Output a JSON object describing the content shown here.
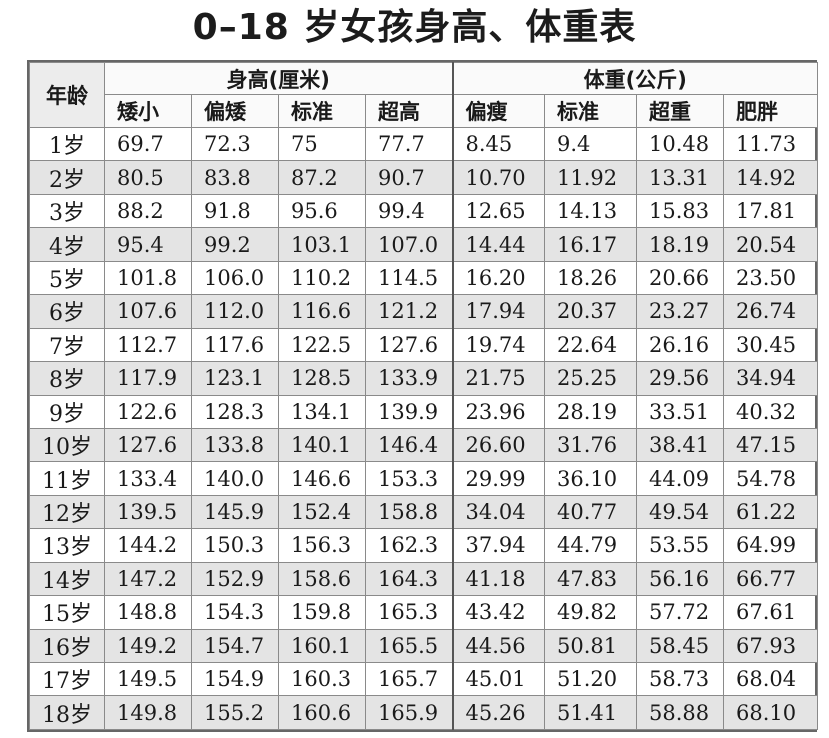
{
  "title": "0–18 岁女孩身高、体重表",
  "headers": {
    "age": "年龄",
    "height_group": "身高(厘米)",
    "weight_group": "体重(公斤)",
    "height_cols": [
      "矮小",
      "偏矮",
      "标准",
      "超高"
    ],
    "weight_cols": [
      "偏瘦",
      "标准",
      "超重",
      "肥胖"
    ]
  },
  "rows": [
    {
      "age": "1岁",
      "h": [
        "69.7",
        "72.3",
        "75",
        "77.7"
      ],
      "w": [
        "8.45",
        "9.4",
        "10.48",
        "11.73"
      ]
    },
    {
      "age": "2岁",
      "h": [
        "80.5",
        "83.8",
        "87.2",
        "90.7"
      ],
      "w": [
        "10.70",
        "11.92",
        "13.31",
        "14.92"
      ]
    },
    {
      "age": "3岁",
      "h": [
        "88.2",
        "91.8",
        "95.6",
        "99.4"
      ],
      "w": [
        "12.65",
        "14.13",
        "15.83",
        "17.81"
      ]
    },
    {
      "age": "4岁",
      "h": [
        "95.4",
        "99.2",
        "103.1",
        "107.0"
      ],
      "w": [
        "14.44",
        "16.17",
        "18.19",
        "20.54"
      ]
    },
    {
      "age": "5岁",
      "h": [
        "101.8",
        "106.0",
        "110.2",
        "114.5"
      ],
      "w": [
        "16.20",
        "18.26",
        "20.66",
        "23.50"
      ]
    },
    {
      "age": "6岁",
      "h": [
        "107.6",
        "112.0",
        "116.6",
        "121.2"
      ],
      "w": [
        "17.94",
        "20.37",
        "23.27",
        "26.74"
      ]
    },
    {
      "age": "7岁",
      "h": [
        "112.7",
        "117.6",
        "122.5",
        "127.6"
      ],
      "w": [
        "19.74",
        "22.64",
        "26.16",
        "30.45"
      ]
    },
    {
      "age": "8岁",
      "h": [
        "117.9",
        "123.1",
        "128.5",
        "133.9"
      ],
      "w": [
        "21.75",
        "25.25",
        "29.56",
        "34.94"
      ]
    },
    {
      "age": "9岁",
      "h": [
        "122.6",
        "128.3",
        "134.1",
        "139.9"
      ],
      "w": [
        "23.96",
        "28.19",
        "33.51",
        "40.32"
      ]
    },
    {
      "age": "10岁",
      "h": [
        "127.6",
        "133.8",
        "140.1",
        "146.4"
      ],
      "w": [
        "26.60",
        "31.76",
        "38.41",
        "47.15"
      ]
    },
    {
      "age": "11岁",
      "h": [
        "133.4",
        "140.0",
        "146.6",
        "153.3"
      ],
      "w": [
        "29.99",
        "36.10",
        "44.09",
        "54.78"
      ]
    },
    {
      "age": "12岁",
      "h": [
        "139.5",
        "145.9",
        "152.4",
        "158.8"
      ],
      "w": [
        "34.04",
        "40.77",
        "49.54",
        "61.22"
      ]
    },
    {
      "age": "13岁",
      "h": [
        "144.2",
        "150.3",
        "156.3",
        "162.3"
      ],
      "w": [
        "37.94",
        "44.79",
        "53.55",
        "64.99"
      ]
    },
    {
      "age": "14岁",
      "h": [
        "147.2",
        "152.9",
        "158.6",
        "164.3"
      ],
      "w": [
        "41.18",
        "47.83",
        "56.16",
        "66.77"
      ]
    },
    {
      "age": "15岁",
      "h": [
        "148.8",
        "154.3",
        "159.8",
        "165.3"
      ],
      "w": [
        "43.42",
        "49.82",
        "57.72",
        "67.61"
      ]
    },
    {
      "age": "16岁",
      "h": [
        "149.2",
        "154.7",
        "160.1",
        "165.5"
      ],
      "w": [
        "44.56",
        "50.81",
        "58.45",
        "67.93"
      ]
    },
    {
      "age": "17岁",
      "h": [
        "149.5",
        "154.9",
        "160.3",
        "165.7"
      ],
      "w": [
        "45.01",
        "51.20",
        "58.73",
        "68.04"
      ]
    },
    {
      "age": "18岁",
      "h": [
        "149.8",
        "155.2",
        "160.6",
        "165.9"
      ],
      "w": [
        "45.26",
        "51.41",
        "58.88",
        "68.10"
      ]
    }
  ]
}
